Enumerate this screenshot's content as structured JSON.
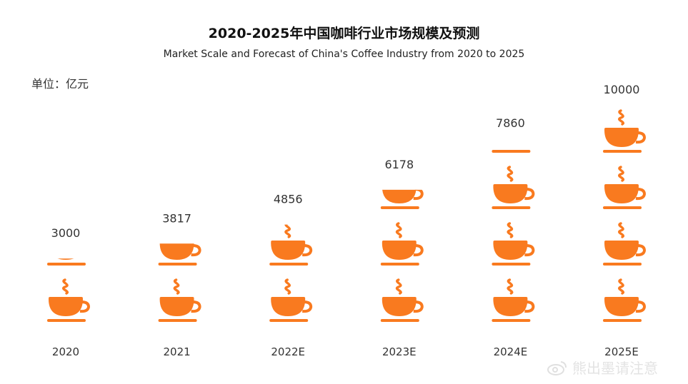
{
  "title": "2020-2025年中国咖啡行业市场规模及预测",
  "subtitle": "Market Scale and Forecast of China's Coffee Industry from 2020 to 2025",
  "unit_label": "单位：亿元",
  "watermark": "熊出墨请注意",
  "colors": {
    "cup": "#f97a1f",
    "text": "#222222"
  },
  "chart_data": {
    "type": "pictograph",
    "title": "2020-2025年中国咖啡行业市场规模及预测",
    "subtitle": "Market Scale and Forecast of China's Coffee Industry from 2020 to 2025",
    "unit": "单位：亿元",
    "icon": "coffee-cup-icon",
    "icon_value": 2500,
    "categories": [
      "2020",
      "2021",
      "2022E",
      "2023E",
      "2024E",
      "2025E"
    ],
    "values": [
      3000,
      3817,
      4856,
      6178,
      7860,
      10000
    ],
    "value_labels": [
      "3000",
      "3817",
      "4856",
      "6178",
      "7860",
      "10000"
    ]
  }
}
